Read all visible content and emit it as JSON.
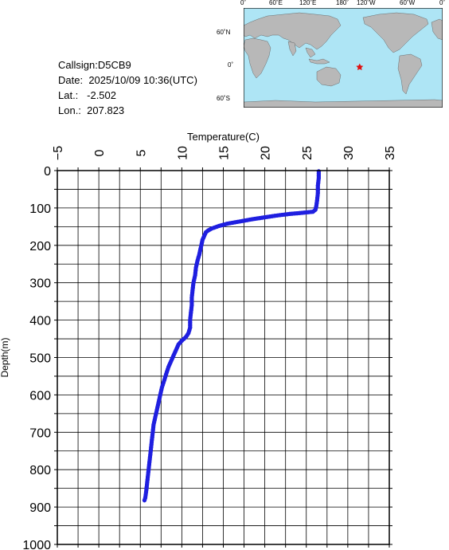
{
  "info": {
    "callsign_label": "Callsign:",
    "callsign": "D5CB9",
    "date_label": "Date:",
    "date": "2025/10/09 10:36(UTC)",
    "lat_label": "Lat.:",
    "lat": "-2.502",
    "lon_label": "Lon.:",
    "lon": "207.823"
  },
  "map": {
    "lon_ticks": [
      "0˚",
      "60˚E",
      "120˚E",
      "180˚",
      "120˚W",
      "60˚W",
      "0˚"
    ],
    "lat_ticks": [
      "60˚N",
      "0˚",
      "60˚S"
    ],
    "ocean_color": "#aee5f5",
    "land_color": "#b8b8b8",
    "marker": {
      "symbol": "star",
      "color": "#e01010",
      "lon": 207.823,
      "lat": -2.502
    }
  },
  "chart_data": {
    "type": "line",
    "xlabel": "Temperature(C)",
    "ylabel": "Depth(m)",
    "xlim": [
      -5,
      35
    ],
    "ylim": [
      1000,
      0
    ],
    "x_axis_position": "top",
    "xticks": [
      -5,
      0,
      5,
      10,
      15,
      20,
      25,
      30,
      35
    ],
    "yticks": [
      0,
      100,
      200,
      300,
      400,
      500,
      600,
      700,
      800,
      900,
      1000
    ],
    "grid": true,
    "series": [
      {
        "color": "#1f1fe0",
        "marker": "circle",
        "points": [
          [
            26.5,
            2
          ],
          [
            26.5,
            20
          ],
          [
            26.4,
            40
          ],
          [
            26.4,
            60
          ],
          [
            26.3,
            80
          ],
          [
            26.2,
            95
          ],
          [
            26.1,
            105
          ],
          [
            25.8,
            110
          ],
          [
            24.5,
            113
          ],
          [
            23.0,
            116
          ],
          [
            21.5,
            120
          ],
          [
            20.0,
            125
          ],
          [
            18.5,
            130
          ],
          [
            17.0,
            136
          ],
          [
            15.5,
            142
          ],
          [
            14.5,
            148
          ],
          [
            13.6,
            155
          ],
          [
            13.2,
            160
          ],
          [
            12.9,
            165
          ],
          [
            12.7,
            175
          ],
          [
            12.5,
            185
          ],
          [
            12.4,
            195
          ],
          [
            12.3,
            205
          ],
          [
            12.2,
            215
          ],
          [
            12.1,
            225
          ],
          [
            11.9,
            240
          ],
          [
            11.7,
            260
          ],
          [
            11.6,
            280
          ],
          [
            11.4,
            300
          ],
          [
            11.3,
            320
          ],
          [
            11.2,
            340
          ],
          [
            11.2,
            360
          ],
          [
            11.1,
            380
          ],
          [
            11.0,
            400
          ],
          [
            11.0,
            420
          ],
          [
            10.8,
            435
          ],
          [
            10.5,
            445
          ],
          [
            10.0,
            455
          ],
          [
            9.6,
            465
          ],
          [
            9.3,
            480
          ],
          [
            9.0,
            495
          ],
          [
            8.7,
            510
          ],
          [
            8.4,
            525
          ],
          [
            8.1,
            545
          ],
          [
            7.9,
            560
          ],
          [
            7.6,
            580
          ],
          [
            7.4,
            600
          ],
          [
            7.2,
            620
          ],
          [
            7.0,
            640
          ],
          [
            6.8,
            660
          ],
          [
            6.6,
            680
          ],
          [
            6.5,
            700
          ],
          [
            6.4,
            720
          ],
          [
            6.3,
            740
          ],
          [
            6.2,
            760
          ],
          [
            6.1,
            780
          ],
          [
            6.0,
            800
          ],
          [
            5.9,
            820
          ],
          [
            5.8,
            840
          ],
          [
            5.7,
            860
          ],
          [
            5.6,
            875
          ],
          [
            5.5,
            882
          ]
        ]
      }
    ]
  }
}
